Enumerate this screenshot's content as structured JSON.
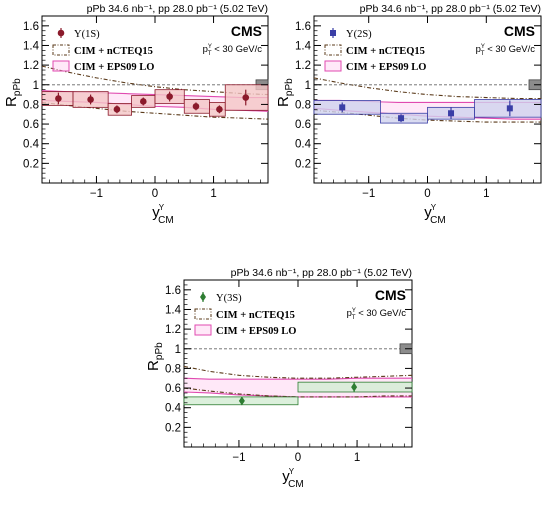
{
  "chart_data": [
    {
      "type": "scatter",
      "panel": "1S",
      "header": "pPb 34.6 nb⁻¹, pp 28.0 pb⁻¹ (5.02 TeV)",
      "experiment": "CMS",
      "pt_label": "pᵀʸ < 30 GeV/c",
      "xlabel": "yʸ CM",
      "ylabel": "RpPb",
      "xlim": [
        -1.93,
        1.93
      ],
      "ylim": [
        0,
        1.7
      ],
      "x_ticks": [
        -1,
        0,
        1
      ],
      "y_ticks": [
        0.2,
        0.4,
        0.6,
        0.8,
        1.0,
        1.2,
        1.4,
        1.6
      ],
      "legend": {
        "position": "top-left",
        "entries": [
          "Υ(1S)",
          "CIM + nCTEQ15",
          "CIM + EPS09 LO"
        ]
      },
      "series": [
        {
          "name": "Υ(1S)",
          "marker": "circle",
          "color": "#8b1a2b",
          "box_fill": "#f4c6c6",
          "x": [
            -1.65,
            -1.1,
            -0.65,
            -0.2,
            0.25,
            0.7,
            1.1,
            1.55
          ],
          "y": [
            0.86,
            0.85,
            0.75,
            0.83,
            0.88,
            0.78,
            0.75,
            0.87
          ],
          "stat_err": [
            0.06,
            0.05,
            0.04,
            0.04,
            0.05,
            0.04,
            0.04,
            0.08
          ],
          "syst_bins": [
            [
              -1.93,
              -1.4
            ],
            [
              -1.4,
              -0.8
            ],
            [
              -0.8,
              -0.4
            ],
            [
              -0.4,
              0.0
            ],
            [
              0.0,
              0.5
            ],
            [
              0.5,
              0.93
            ],
            [
              0.93,
              1.2
            ],
            [
              1.2,
              1.93
            ]
          ],
          "syst_err": [
            0.07,
            0.08,
            0.06,
            0.06,
            0.07,
            0.07,
            0.07,
            0.13
          ]
        }
      ],
      "models": {
        "nCTEQ15": {
          "x": [
            -1.93,
            -1.5,
            -1.0,
            -0.5,
            0.0,
            0.5,
            1.0,
            1.5,
            1.93
          ],
          "upper": [
            1.19,
            1.13,
            1.07,
            1.02,
            0.98,
            0.95,
            0.93,
            0.91,
            0.9
          ],
          "lower": [
            0.82,
            0.79,
            0.76,
            0.73,
            0.71,
            0.69,
            0.67,
            0.66,
            0.65
          ]
        },
        "EPS09": {
          "x": [
            -1.93,
            -1.5,
            -1.0,
            -0.5,
            0.0,
            0.5,
            1.0,
            1.5,
            1.93
          ],
          "upper": [
            0.94,
            0.93,
            0.92,
            0.91,
            0.9,
            0.89,
            0.88,
            0.87,
            0.87
          ],
          "lower": [
            0.84,
            0.83,
            0.82,
            0.8,
            0.78,
            0.77,
            0.75,
            0.74,
            0.73
          ]
        }
      },
      "norm_box": 0.05
    },
    {
      "type": "scatter",
      "panel": "2S",
      "header": "pPb 34.6 nb⁻¹, pp 28.0 pb⁻¹ (5.02 TeV)",
      "experiment": "CMS",
      "pt_label": "pᵀʸ < 30 GeV/c",
      "xlabel": "yʸ CM",
      "ylabel": "RpPb",
      "xlim": [
        -1.93,
        1.93
      ],
      "ylim": [
        0,
        1.7
      ],
      "x_ticks": [
        -1,
        0,
        1
      ],
      "y_ticks": [
        0.2,
        0.4,
        0.6,
        0.8,
        1.0,
        1.2,
        1.4,
        1.6
      ],
      "legend": {
        "position": "top-left",
        "entries": [
          "Υ(2S)",
          "CIM + nCTEQ15",
          "CIM + EPS09 LO"
        ]
      },
      "series": [
        {
          "name": "Υ(2S)",
          "marker": "square",
          "color": "#3a3ea6",
          "box_fill": "#cfd2ee",
          "x": [
            -1.45,
            -0.45,
            0.4,
            1.4
          ],
          "y": [
            0.77,
            0.66,
            0.71,
            0.76
          ],
          "stat_err": [
            0.05,
            0.04,
            0.06,
            0.08
          ],
          "syst_bins": [
            [
              -1.93,
              -0.8
            ],
            [
              -0.8,
              0.0
            ],
            [
              0.0,
              0.8
            ],
            [
              0.8,
              1.93
            ]
          ],
          "syst_err": [
            0.07,
            0.05,
            0.06,
            0.09
          ]
        }
      ],
      "models": {
        "nCTEQ15": {
          "x": [
            -1.93,
            -1.5,
            -1.0,
            -0.5,
            0.0,
            0.5,
            1.0,
            1.5,
            1.93
          ],
          "upper": [
            1.07,
            1.02,
            0.97,
            0.93,
            0.9,
            0.88,
            0.87,
            0.86,
            0.86
          ],
          "lower": [
            0.74,
            0.72,
            0.69,
            0.66,
            0.64,
            0.63,
            0.62,
            0.62,
            0.62
          ]
        },
        "EPS09": {
          "x": [
            -1.93,
            -1.5,
            -1.0,
            -0.5,
            0.0,
            0.5,
            1.0,
            1.5,
            1.93
          ],
          "upper": [
            0.84,
            0.84,
            0.83,
            0.82,
            0.82,
            0.82,
            0.82,
            0.82,
            0.82
          ],
          "lower": [
            0.76,
            0.74,
            0.72,
            0.7,
            0.68,
            0.67,
            0.66,
            0.65,
            0.65
          ]
        }
      },
      "norm_box": 0.05
    },
    {
      "type": "scatter",
      "panel": "3S",
      "header": "pPb 34.6 nb⁻¹, pp 28.0 pb⁻¹ (5.02 TeV)",
      "experiment": "CMS",
      "pt_label": "pᵀʸ < 30 GeV/c",
      "xlabel": "yʸ CM",
      "ylabel": "RpPb",
      "xlim": [
        -1.93,
        1.93
      ],
      "ylim": [
        0,
        1.7
      ],
      "x_ticks": [
        -1,
        0,
        1
      ],
      "y_ticks": [
        0.2,
        0.4,
        0.6,
        0.8,
        1.0,
        1.2,
        1.4,
        1.6
      ],
      "legend": {
        "position": "top-left",
        "entries": [
          "Υ(3S)",
          "CIM + nCTEQ15",
          "CIM + EPS09 LO"
        ]
      },
      "series": [
        {
          "name": "Υ(3S)",
          "marker": "diamond",
          "color": "#2e7d32",
          "box_fill": "#d3ecd3",
          "x": [
            -0.95,
            0.95
          ],
          "y": [
            0.47,
            0.61
          ],
          "stat_err": [
            0.04,
            0.05
          ],
          "syst_bins": [
            [
              -1.93,
              0.0
            ],
            [
              0.0,
              1.93
            ]
          ],
          "syst_err": [
            0.04,
            0.05
          ]
        }
      ],
      "models": {
        "nCTEQ15": {
          "x": [
            -1.93,
            -1.5,
            -1.0,
            -0.5,
            0.0,
            0.5,
            1.0,
            1.5,
            1.93
          ],
          "upper": [
            0.82,
            0.77,
            0.73,
            0.71,
            0.7,
            0.7,
            0.71,
            0.72,
            0.73
          ],
          "lower": [
            0.6,
            0.57,
            0.54,
            0.52,
            0.51,
            0.51,
            0.51,
            0.52,
            0.52
          ]
        },
        "EPS09": {
          "x": [
            -1.93,
            -1.5,
            -1.0,
            -0.5,
            0.0,
            0.5,
            1.0,
            1.5,
            1.93
          ],
          "upper": [
            0.7,
            0.69,
            0.69,
            0.69,
            0.69,
            0.69,
            0.7,
            0.7,
            0.7
          ],
          "lower": [
            0.56,
            0.55,
            0.53,
            0.52,
            0.51,
            0.51,
            0.51,
            0.51,
            0.51
          ]
        }
      },
      "norm_box": 0.05
    }
  ]
}
